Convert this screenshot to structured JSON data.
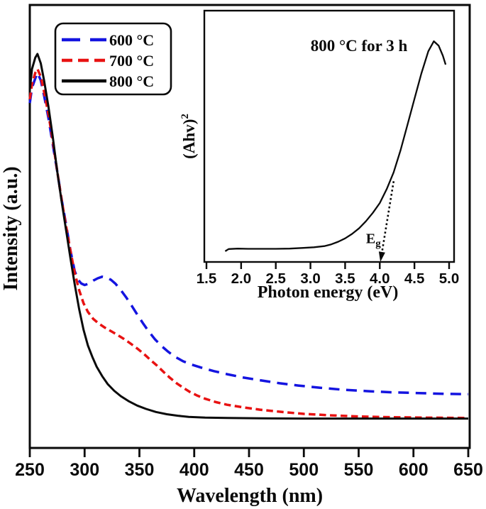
{
  "figure": {
    "background": "#ffffff",
    "axis_color": "#0a0a0a"
  },
  "chart_data": [
    {
      "type": "line",
      "title": "",
      "xlabel": "Wavelength (nm)",
      "ylabel": "Intensity (a.u.)",
      "xlim": [
        250,
        650
      ],
      "ylim": [
        0,
        1.1
      ],
      "grid": false,
      "legend_position": "top-left",
      "xticks": [
        250,
        300,
        350,
        400,
        450,
        500,
        550,
        600,
        650
      ],
      "xtick_labels": [
        "250",
        "300",
        "350",
        "400",
        "450",
        "500",
        "550",
        "600",
        "650"
      ],
      "yticks": [],
      "y_units": "arbitrary units (normalized 0-1)",
      "series": [
        {
          "name": "600 °C",
          "color": "#1414e0",
          "style": "long-dash",
          "points": [
            [
              250,
              0.84
            ],
            [
              252,
              0.88
            ],
            [
              255,
              0.905
            ],
            [
              257,
              0.92
            ],
            [
              260,
              0.9
            ],
            [
              263,
              0.86
            ],
            [
              267,
              0.8
            ],
            [
              271,
              0.73
            ],
            [
              275,
              0.66
            ],
            [
              279,
              0.585
            ],
            [
              283,
              0.52
            ],
            [
              287,
              0.45
            ],
            [
              291,
              0.395
            ],
            [
              294,
              0.372
            ],
            [
              297,
              0.362
            ],
            [
              300,
              0.358
            ],
            [
              304,
              0.362
            ],
            [
              308,
              0.37
            ],
            [
              312,
              0.376
            ],
            [
              316,
              0.38
            ],
            [
              320,
              0.378
            ],
            [
              324,
              0.372
            ],
            [
              328,
              0.362
            ],
            [
              333,
              0.345
            ],
            [
              338,
              0.325
            ],
            [
              343,
              0.303
            ],
            [
              348,
              0.28
            ],
            [
              353,
              0.258
            ],
            [
              358,
              0.237
            ],
            [
              364,
              0.215
            ],
            [
              370,
              0.197
            ],
            [
              376,
              0.182
            ],
            [
              382,
              0.169
            ],
            [
              390,
              0.156
            ],
            [
              398,
              0.147
            ],
            [
              408,
              0.138
            ],
            [
              418,
              0.13
            ],
            [
              430,
              0.122
            ],
            [
              445,
              0.113
            ],
            [
              460,
              0.106
            ],
            [
              478,
              0.098
            ],
            [
              495,
              0.092
            ],
            [
              515,
              0.086
            ],
            [
              535,
              0.081
            ],
            [
              558,
              0.077
            ],
            [
              580,
              0.074
            ],
            [
              605,
              0.072
            ],
            [
              628,
              0.07
            ],
            [
              650,
              0.069
            ]
          ]
        },
        {
          "name": "700 °C",
          "color": "#e81212",
          "style": "short-dash",
          "points": [
            [
              250,
              0.85
            ],
            [
              252,
              0.89
            ],
            [
              255,
              0.92
            ],
            [
              257,
              0.93
            ],
            [
              260,
              0.91
            ],
            [
              263,
              0.87
            ],
            [
              267,
              0.81
            ],
            [
              271,
              0.74
            ],
            [
              275,
              0.66
            ],
            [
              279,
              0.585
            ],
            [
              283,
              0.515
            ],
            [
              287,
              0.45
            ],
            [
              291,
              0.39
            ],
            [
              295,
              0.345
            ],
            [
              299,
              0.31
            ],
            [
              303,
              0.287
            ],
            [
              308,
              0.268
            ],
            [
              313,
              0.256
            ],
            [
              318,
              0.246
            ],
            [
              324,
              0.236
            ],
            [
              330,
              0.226
            ],
            [
              336,
              0.215
            ],
            [
              342,
              0.203
            ],
            [
              348,
              0.19
            ],
            [
              354,
              0.176
            ],
            [
              360,
              0.16
            ],
            [
              366,
              0.145
            ],
            [
              372,
              0.128
            ],
            [
              378,
              0.112
            ],
            [
              384,
              0.098
            ],
            [
              390,
              0.086
            ],
            [
              396,
              0.075
            ],
            [
              403,
              0.065
            ],
            [
              410,
              0.057
            ],
            [
              420,
              0.048
            ],
            [
              430,
              0.041
            ],
            [
              445,
              0.034
            ],
            [
              460,
              0.028
            ],
            [
              480,
              0.022
            ],
            [
              500,
              0.017
            ],
            [
              525,
              0.013
            ],
            [
              550,
              0.01
            ],
            [
              580,
              0.008
            ],
            [
              610,
              0.007
            ],
            [
              650,
              0.006
            ]
          ]
        },
        {
          "name": "800 °C",
          "color": "#0a0a0a",
          "style": "solid",
          "points": [
            [
              250,
              0.875
            ],
            [
              252,
              0.93
            ],
            [
              255,
              0.96
            ],
            [
              257,
              0.97
            ],
            [
              260,
              0.945
            ],
            [
              263,
              0.9
            ],
            [
              267,
              0.83
            ],
            [
              271,
              0.75
            ],
            [
              275,
              0.66
            ],
            [
              279,
              0.58
            ],
            [
              283,
              0.505
            ],
            [
              287,
              0.43
            ],
            [
              291,
              0.36
            ],
            [
              295,
              0.295
            ],
            [
              299,
              0.24
            ],
            [
              303,
              0.198
            ],
            [
              307,
              0.168
            ],
            [
              311,
              0.142
            ],
            [
              316,
              0.117
            ],
            [
              321,
              0.096
            ],
            [
              327,
              0.078
            ],
            [
              333,
              0.064
            ],
            [
              340,
              0.051
            ],
            [
              348,
              0.039
            ],
            [
              356,
              0.03
            ],
            [
              365,
              0.022
            ],
            [
              375,
              0.016
            ],
            [
              385,
              0.012
            ],
            [
              395,
              0.009
            ],
            [
              410,
              0.007
            ],
            [
              430,
              0.006
            ],
            [
              460,
              0.005
            ],
            [
              500,
              0.0045
            ],
            [
              550,
              0.0045
            ],
            [
              600,
              0.0045
            ],
            [
              650,
              0.0045
            ]
          ]
        }
      ]
    },
    {
      "type": "line",
      "title": "800 °C for 3 h",
      "xlabel": "Photon energy (eV)",
      "ylabel": "(Ahv)²",
      "ylabel_base": "(Ahv)",
      "ylabel_sup": "2",
      "xlim": [
        1.5,
        5.0
      ],
      "ylim": [
        0,
        1.13
      ],
      "grid": false,
      "xticks": [
        1.5,
        2.0,
        2.5,
        3.0,
        3.5,
        4.0,
        4.5,
        5.0
      ],
      "xtick_labels": [
        "1.5",
        "2.0",
        "2.5",
        "3.0",
        "3.5",
        "4.0",
        "4.5",
        "5.0"
      ],
      "yticks": [],
      "series": [
        {
          "name": "800 °C for 3 h",
          "color": "#0a0a0a",
          "style": "solid",
          "points": [
            [
              1.77,
              0.045
            ],
            [
              1.82,
              0.055
            ],
            [
              1.95,
              0.057
            ],
            [
              2.1,
              0.056
            ],
            [
              2.3,
              0.056
            ],
            [
              2.5,
              0.056
            ],
            [
              2.7,
              0.057
            ],
            [
              2.9,
              0.06
            ],
            [
              3.05,
              0.063
            ],
            [
              3.2,
              0.068
            ],
            [
              3.3,
              0.076
            ],
            [
              3.4,
              0.088
            ],
            [
              3.5,
              0.103
            ],
            [
              3.6,
              0.123
            ],
            [
              3.7,
              0.148
            ],
            [
              3.8,
              0.18
            ],
            [
              3.9,
              0.218
            ],
            [
              4.0,
              0.262
            ],
            [
              4.1,
              0.325
            ],
            [
              4.2,
              0.4
            ],
            [
              4.3,
              0.5
            ],
            [
              4.4,
              0.615
            ],
            [
              4.5,
              0.73
            ],
            [
              4.6,
              0.845
            ],
            [
              4.7,
              0.945
            ],
            [
              4.78,
              0.99
            ],
            [
              4.85,
              0.97
            ],
            [
              4.91,
              0.925
            ],
            [
              4.95,
              0.885
            ]
          ]
        }
      ],
      "annotation": {
        "eg_base": "E",
        "eg_sub": "g",
        "band_gap_ev": 4.0,
        "arrow_from": [
          4.2,
          0.36
        ],
        "arrow_to": [
          4.017,
          0.013
        ],
        "label_pos": [
          3.81,
          0.095
        ],
        "line_style": "dotted"
      }
    }
  ],
  "legend": {
    "items": [
      "600 °C",
      "700 °C",
      "800 °C"
    ]
  }
}
